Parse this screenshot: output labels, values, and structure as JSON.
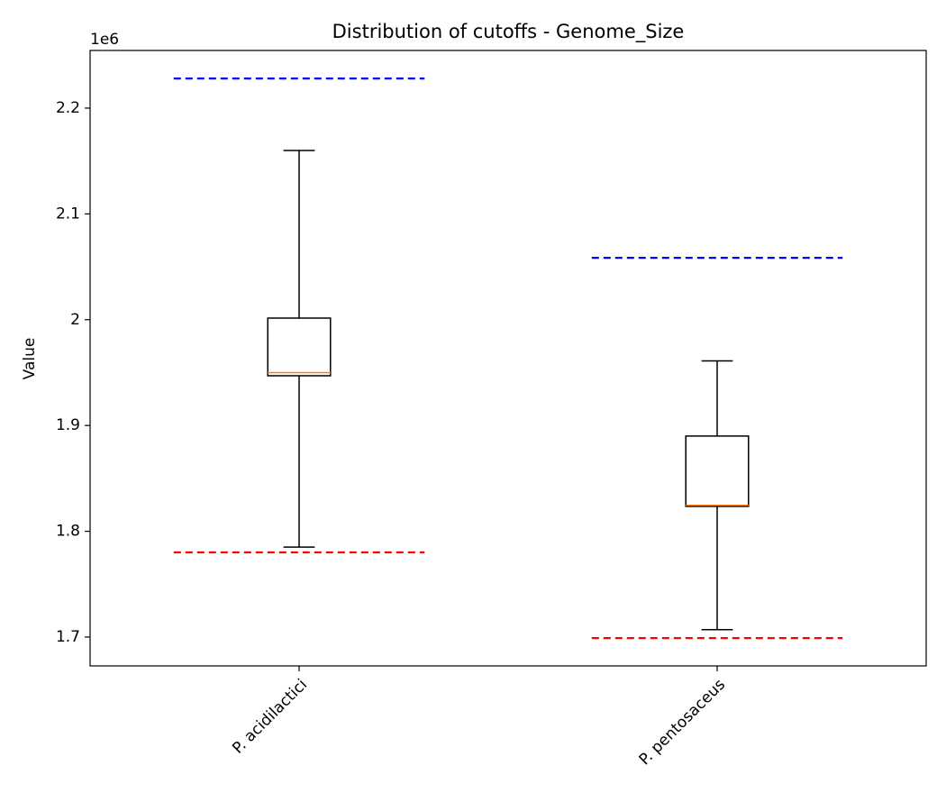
{
  "chart_data": {
    "type": "box",
    "title": "Distribution of cutoffs - Genome_Size",
    "y_label": "Value",
    "y_offset_label": "1e6",
    "categories": [
      "P. acidilactici",
      "P. pentosaceus"
    ],
    "boxes": [
      {
        "whisker_low": 1.785,
        "q1": 1.947,
        "median": 1.95,
        "q3": 2.0015,
        "whisker_high": 2.16
      },
      {
        "whisker_low": 1.707,
        "q1": 1.8235,
        "median": 1.8245,
        "q3": 1.89,
        "whisker_high": 1.961
      }
    ],
    "box_color": "#000000",
    "median_color": "#ff7f0e",
    "upper_cutoff": {
      "values": [
        2.228,
        2.0585
      ],
      "color": "#0000ff"
    },
    "lower_cutoff": {
      "values": [
        1.78,
        1.699
      ],
      "color": "#ff0000"
    },
    "ylim": [
      1.6727,
      2.2545
    ],
    "yticks": [
      1.7,
      1.8,
      1.9,
      2.0,
      2.1,
      2.2
    ],
    "grid": false
  }
}
